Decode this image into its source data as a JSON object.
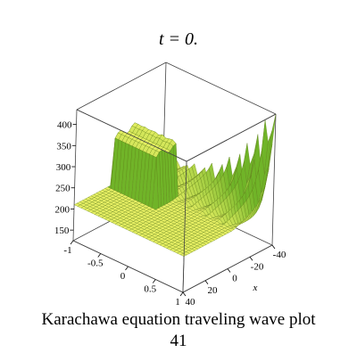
{
  "chart_data": {
    "type": "surface3d",
    "title": "t = 0.",
    "caption": "Karachawa equation  traveling wave plot",
    "figure_number": "41",
    "x_label": "x",
    "xlim": [
      -40,
      40
    ],
    "xticks": [
      -40,
      -20,
      0,
      20,
      40
    ],
    "ylim": [
      -1,
      1
    ],
    "yticks": [
      -1,
      -0.5,
      0,
      0.5,
      1
    ],
    "zlim": [
      125,
      435
    ],
    "zticks": [
      150,
      200,
      250,
      300,
      350,
      400
    ]
  }
}
